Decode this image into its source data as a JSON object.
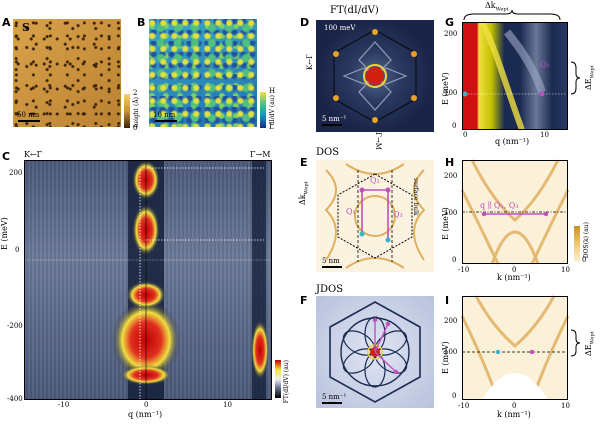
{
  "figure": {
    "panels": {
      "A": {
        "label": "A",
        "inset_letter": "S",
        "scalebar": "50 nm",
        "colorbar_label": "height (Å)",
        "colorbar_max": "2",
        "colorbar_min": "0"
      },
      "B": {
        "label": "B",
        "scalebar": "10 nm",
        "colorbar_label": "dI/dV (au)",
        "colorbar_max": "H",
        "colorbar_min": "L"
      },
      "C": {
        "label": "C",
        "direction_left": "K←Γ",
        "direction_right": "Γ→M",
        "ylabel": "E (meV)",
        "xlabel": "q (nm⁻¹)",
        "yticks": [
          "200",
          "0",
          "-200",
          "-400"
        ],
        "xticks": [
          "-10",
          "0",
          "10"
        ],
        "colorbar_label": "FT(dI/dV) (au)"
      },
      "D": {
        "label": "D",
        "title": "FT(dI/dV)",
        "energy": "100 meV",
        "axis_left": "K←Γ",
        "axis_bottom": "Γ→M",
        "scalebar": "5 nm⁻¹"
      },
      "E": {
        "label": "E",
        "title": "DOS",
        "delta_k": "Δk",
        "delta_k_sub": "Wept",
        "q_labels": [
          "Q₁",
          "Q₂",
          "Q₃"
        ],
        "surface_label": "surface bulk",
        "scalebar": "5 nm"
      },
      "F": {
        "label": "F",
        "title": "JDOS",
        "scalebar": "5 nm⁻¹"
      },
      "G": {
        "label": "G",
        "top_label": "Δk",
        "top_label_sub": "Wept",
        "right_label": "ΔE",
        "right_label_sub": "Wept",
        "ylabel": "E (meV)",
        "xlabel": "q (nm⁻¹)",
        "yticks": [
          "200",
          "100",
          "0"
        ],
        "xticks": [
          "0",
          "10"
        ],
        "q_annot": "Q₁"
      },
      "H": {
        "label": "H",
        "ylabel": "E (meV)",
        "xlabel": "k (nm⁻¹)",
        "yticks": [
          "200",
          "100",
          "0"
        ],
        "xticks": [
          "-10",
          "0",
          "10"
        ],
        "annotation": "q ∥ Q₁, Q₃",
        "colorbar_label": "DOS(k) (au)",
        "colorbar_min": "0"
      },
      "I": {
        "label": "I",
        "ylabel": "E (meV)",
        "xlabel": "k (nm⁻¹)",
        "yticks": [
          "200",
          "100",
          "0"
        ],
        "xticks": [
          "-10",
          "0",
          "10"
        ],
        "right_label": "ΔE",
        "right_label_sub": "Wept"
      }
    },
    "colors": {
      "accent_magenta": "#c050c0",
      "accent_cyan": "#3cb4c8",
      "heat_red": "#d01010",
      "heat_yellow": "#f0e040",
      "map_blue": "#1a2a50"
    }
  }
}
